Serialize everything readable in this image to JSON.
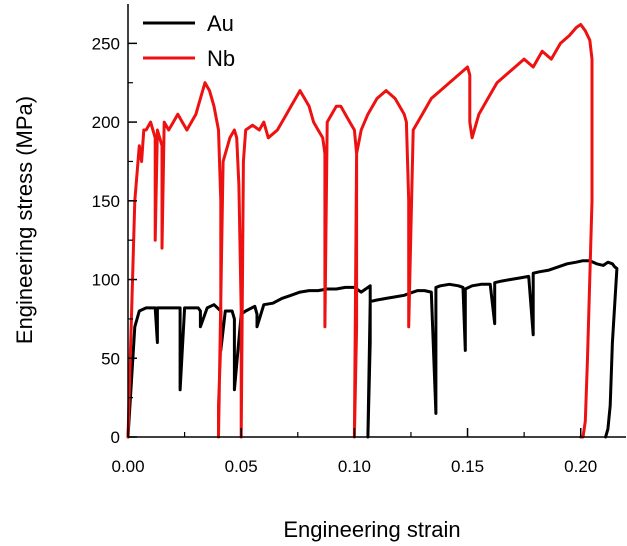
{
  "chart_data": {
    "type": "line",
    "title": "",
    "xlabel": "Engineering strain",
    "ylabel": "Engineering stress (MPa)",
    "xlim": [
      0.0,
      0.22
    ],
    "ylim": [
      0,
      275
    ],
    "x_ticks": [
      0.0,
      0.05,
      0.1,
      0.15,
      0.2
    ],
    "x_tick_labels": [
      "0.00",
      "0.05",
      "0.10",
      "0.15",
      "0.20"
    ],
    "y_ticks": [
      0,
      50,
      100,
      150,
      200,
      250
    ],
    "y_tick_labels": [
      "0",
      "50",
      "100",
      "150",
      "200",
      "250"
    ],
    "grid": false,
    "legend_position": "top-left",
    "series": [
      {
        "name": "Au",
        "color": "#000000",
        "x": [
          0.0,
          0.003,
          0.005,
          0.008,
          0.012,
          0.013,
          0.013,
          0.016,
          0.018,
          0.02,
          0.023,
          0.023,
          0.025,
          0.028,
          0.031,
          0.032,
          0.032,
          0.035,
          0.038,
          0.041,
          0.041,
          0.043,
          0.046,
          0.047,
          0.047,
          0.05,
          0.052,
          0.056,
          0.057,
          0.057,
          0.06,
          0.064,
          0.068,
          0.072,
          0.076,
          0.08,
          0.084,
          0.088,
          0.092,
          0.096,
          0.1,
          0.103,
          0.105,
          0.107,
          0.107,
          0.106,
          0.107,
          0.11,
          0.114,
          0.118,
          0.122,
          0.126,
          0.128,
          0.131,
          0.134,
          0.136,
          0.136,
          0.138,
          0.142,
          0.146,
          0.148,
          0.149,
          0.149,
          0.152,
          0.156,
          0.16,
          0.162,
          0.162,
          0.165,
          0.169,
          0.173,
          0.177,
          0.179,
          0.179,
          0.182,
          0.186,
          0.19,
          0.194,
          0.198,
          0.201,
          0.204,
          0.207,
          0.21,
          0.212,
          0.214,
          0.215,
          0.216,
          0.214,
          0.213,
          0.212,
          0.211
        ],
        "y": [
          0,
          70,
          80,
          82,
          82,
          60,
          82,
          82,
          82,
          82,
          82,
          30,
          82,
          82,
          82,
          80,
          70,
          82,
          84,
          80,
          55,
          80,
          80,
          75,
          30,
          78,
          80,
          83,
          78,
          70,
          84,
          85,
          88,
          90,
          92,
          93,
          93,
          94,
          94,
          95,
          95,
          92,
          94,
          96,
          60,
          0,
          86,
          87,
          88,
          89,
          90,
          92,
          93,
          93,
          92,
          15,
          95,
          96,
          97,
          96,
          95,
          55,
          94,
          96,
          97,
          97,
          72,
          98,
          99,
          100,
          101,
          102,
          65,
          104,
          105,
          106,
          108,
          110,
          111,
          112,
          112,
          110,
          109,
          111,
          110,
          108,
          107,
          60,
          20,
          5,
          0
        ]
      },
      {
        "name": "Nb",
        "color": "#ee1111",
        "x": [
          0.0,
          0.003,
          0.005,
          0.006,
          0.007,
          0.008,
          0.01,
          0.012,
          0.012,
          0.013,
          0.015,
          0.015,
          0.016,
          0.018,
          0.02,
          0.022,
          0.024,
          0.026,
          0.028,
          0.03,
          0.032,
          0.034,
          0.036,
          0.038,
          0.04,
          0.041,
          0.041,
          0.04,
          0.04,
          0.042,
          0.045,
          0.047,
          0.048,
          0.049,
          0.05,
          0.05,
          0.051,
          0.052,
          0.055,
          0.058,
          0.06,
          0.062,
          0.066,
          0.07,
          0.072,
          0.074,
          0.076,
          0.078,
          0.08,
          0.082,
          0.084,
          0.086,
          0.087,
          0.087,
          0.088,
          0.09,
          0.092,
          0.094,
          0.096,
          0.098,
          0.1,
          0.101,
          0.101,
          0.1,
          0.101,
          0.103,
          0.106,
          0.11,
          0.114,
          0.118,
          0.12,
          0.122,
          0.123,
          0.124,
          0.124,
          0.126,
          0.13,
          0.134,
          0.138,
          0.142,
          0.146,
          0.15,
          0.151,
          0.151,
          0.152,
          0.155,
          0.159,
          0.163,
          0.167,
          0.171,
          0.175,
          0.179,
          0.183,
          0.187,
          0.191,
          0.195,
          0.198,
          0.2,
          0.202,
          0.204,
          0.205,
          0.205,
          0.203,
          0.202,
          0.201,
          0.2,
          0.2
        ],
        "y": [
          0,
          150,
          185,
          175,
          195,
          195,
          200,
          190,
          125,
          195,
          185,
          120,
          200,
          195,
          200,
          205,
          200,
          195,
          200,
          205,
          215,
          225,
          220,
          210,
          195,
          150,
          60,
          20,
          0,
          175,
          190,
          195,
          190,
          160,
          80,
          0,
          175,
          195,
          198,
          195,
          200,
          190,
          195,
          205,
          210,
          215,
          220,
          215,
          210,
          200,
          195,
          190,
          180,
          70,
          200,
          205,
          210,
          210,
          205,
          200,
          195,
          180,
          70,
          0,
          180,
          195,
          205,
          215,
          220,
          215,
          210,
          205,
          200,
          150,
          70,
          195,
          205,
          215,
          220,
          225,
          230,
          235,
          230,
          200,
          190,
          205,
          215,
          225,
          230,
          235,
          240,
          235,
          245,
          240,
          250,
          255,
          260,
          262,
          258,
          252,
          240,
          150,
          50,
          10,
          0,
          0,
          0
        ]
      }
    ]
  },
  "legend": {
    "items": [
      {
        "label": "Au",
        "color": "#000000"
      },
      {
        "label": "Nb",
        "color": "#ee1111"
      }
    ]
  }
}
